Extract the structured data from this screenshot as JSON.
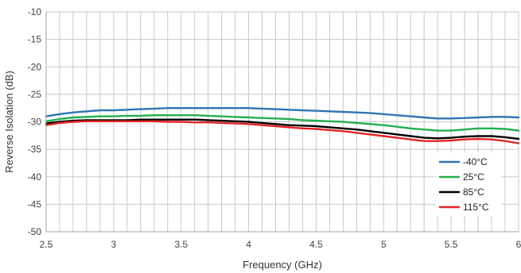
{
  "chart_data": {
    "type": "line",
    "title": "",
    "xlabel": "Frequency (GHz)",
    "ylabel": "Reverse Isolation (dB)",
    "xlim": [
      2.5,
      6
    ],
    "ylim": [
      -50,
      -10
    ],
    "xticks": [
      2.5,
      3,
      3.5,
      4,
      4.5,
      5,
      5.5,
      6
    ],
    "xtick_labels": [
      "2.5",
      "3",
      "3.5",
      "4",
      "4.5",
      "5",
      "5.5",
      "6"
    ],
    "yticks": [
      -10,
      -15,
      -20,
      -25,
      -30,
      -35,
      -40,
      -45,
      -50
    ],
    "ytick_labels": [
      "-10",
      "-15",
      "-20",
      "-25",
      "-30",
      "-35",
      "-40",
      "-45",
      "-50"
    ],
    "grid": {
      "vertical_minor": true,
      "vertical_step": 0.1,
      "horizontal": true
    },
    "legend_position": "bottom-right",
    "series": [
      {
        "name": "-40°C",
        "color": "#2f75b5",
        "points": [
          [
            2.5,
            -29.0
          ],
          [
            2.6,
            -28.6
          ],
          [
            2.7,
            -28.3
          ],
          [
            2.8,
            -28.1
          ],
          [
            2.9,
            -27.9
          ],
          [
            3.0,
            -27.9
          ],
          [
            3.1,
            -27.8
          ],
          [
            3.2,
            -27.7
          ],
          [
            3.3,
            -27.6
          ],
          [
            3.4,
            -27.5
          ],
          [
            3.5,
            -27.5
          ],
          [
            3.6,
            -27.5
          ],
          [
            3.7,
            -27.5
          ],
          [
            3.8,
            -27.5
          ],
          [
            3.9,
            -27.5
          ],
          [
            4.0,
            -27.5
          ],
          [
            4.1,
            -27.6
          ],
          [
            4.2,
            -27.7
          ],
          [
            4.3,
            -27.8
          ],
          [
            4.4,
            -27.9
          ],
          [
            4.5,
            -28.0
          ],
          [
            4.6,
            -28.1
          ],
          [
            4.7,
            -28.2
          ],
          [
            4.8,
            -28.3
          ],
          [
            4.9,
            -28.4
          ],
          [
            5.0,
            -28.6
          ],
          [
            5.1,
            -28.8
          ],
          [
            5.2,
            -29.0
          ],
          [
            5.3,
            -29.2
          ],
          [
            5.4,
            -29.4
          ],
          [
            5.5,
            -29.4
          ],
          [
            5.6,
            -29.3
          ],
          [
            5.7,
            -29.2
          ],
          [
            5.8,
            -29.1
          ],
          [
            5.9,
            -29.1
          ],
          [
            6.0,
            -29.2
          ]
        ]
      },
      {
        "name": "25°C",
        "color": "#22b04e",
        "points": [
          [
            2.5,
            -29.9
          ],
          [
            2.6,
            -29.5
          ],
          [
            2.7,
            -29.2
          ],
          [
            2.8,
            -29.1
          ],
          [
            2.9,
            -29.0
          ],
          [
            3.0,
            -29.0
          ],
          [
            3.1,
            -28.9
          ],
          [
            3.2,
            -28.9
          ],
          [
            3.3,
            -28.8
          ],
          [
            3.4,
            -28.8
          ],
          [
            3.5,
            -28.8
          ],
          [
            3.6,
            -28.8
          ],
          [
            3.7,
            -28.9
          ],
          [
            3.8,
            -29.0
          ],
          [
            3.9,
            -29.1
          ],
          [
            4.0,
            -29.2
          ],
          [
            4.1,
            -29.3
          ],
          [
            4.2,
            -29.4
          ],
          [
            4.3,
            -29.5
          ],
          [
            4.4,
            -29.7
          ],
          [
            4.5,
            -29.8
          ],
          [
            4.6,
            -29.9
          ],
          [
            4.7,
            -30.0
          ],
          [
            4.8,
            -30.2
          ],
          [
            4.9,
            -30.4
          ],
          [
            5.0,
            -30.6
          ],
          [
            5.1,
            -30.9
          ],
          [
            5.2,
            -31.2
          ],
          [
            5.3,
            -31.4
          ],
          [
            5.4,
            -31.6
          ],
          [
            5.5,
            -31.6
          ],
          [
            5.6,
            -31.4
          ],
          [
            5.7,
            -31.2
          ],
          [
            5.8,
            -31.2
          ],
          [
            5.9,
            -31.3
          ],
          [
            6.0,
            -31.6
          ]
        ]
      },
      {
        "name": "85°C",
        "color": "#000000",
        "points": [
          [
            2.5,
            -30.3
          ],
          [
            2.6,
            -30.0
          ],
          [
            2.7,
            -29.8
          ],
          [
            2.8,
            -29.7
          ],
          [
            2.9,
            -29.7
          ],
          [
            3.0,
            -29.7
          ],
          [
            3.1,
            -29.7
          ],
          [
            3.2,
            -29.6
          ],
          [
            3.3,
            -29.6
          ],
          [
            3.4,
            -29.6
          ],
          [
            3.5,
            -29.6
          ],
          [
            3.6,
            -29.6
          ],
          [
            3.7,
            -29.7
          ],
          [
            3.8,
            -29.8
          ],
          [
            3.9,
            -29.9
          ],
          [
            4.0,
            -30.0
          ],
          [
            4.1,
            -30.2
          ],
          [
            4.2,
            -30.4
          ],
          [
            4.3,
            -30.6
          ],
          [
            4.4,
            -30.7
          ],
          [
            4.5,
            -30.8
          ],
          [
            4.6,
            -31.0
          ],
          [
            4.7,
            -31.2
          ],
          [
            4.8,
            -31.4
          ],
          [
            4.9,
            -31.7
          ],
          [
            5.0,
            -32.0
          ],
          [
            5.1,
            -32.3
          ],
          [
            5.2,
            -32.6
          ],
          [
            5.3,
            -32.9
          ],
          [
            5.4,
            -33.0
          ],
          [
            5.5,
            -32.9
          ],
          [
            5.6,
            -32.7
          ],
          [
            5.7,
            -32.6
          ],
          [
            5.8,
            -32.6
          ],
          [
            5.9,
            -32.8
          ],
          [
            6.0,
            -33.1
          ]
        ]
      },
      {
        "name": "115°C",
        "color": "#e52323",
        "points": [
          [
            2.5,
            -30.6
          ],
          [
            2.6,
            -30.2
          ],
          [
            2.7,
            -30.0
          ],
          [
            2.8,
            -29.9
          ],
          [
            2.9,
            -29.9
          ],
          [
            3.0,
            -29.9
          ],
          [
            3.1,
            -29.9
          ],
          [
            3.2,
            -29.9
          ],
          [
            3.3,
            -29.9
          ],
          [
            3.4,
            -30.0
          ],
          [
            3.5,
            -30.0
          ],
          [
            3.6,
            -30.1
          ],
          [
            3.7,
            -30.1
          ],
          [
            3.8,
            -30.2
          ],
          [
            3.9,
            -30.3
          ],
          [
            4.0,
            -30.4
          ],
          [
            4.1,
            -30.6
          ],
          [
            4.2,
            -30.8
          ],
          [
            4.3,
            -31.0
          ],
          [
            4.4,
            -31.2
          ],
          [
            4.5,
            -31.3
          ],
          [
            4.6,
            -31.5
          ],
          [
            4.7,
            -31.7
          ],
          [
            4.8,
            -32.0
          ],
          [
            4.9,
            -32.3
          ],
          [
            5.0,
            -32.6
          ],
          [
            5.1,
            -32.9
          ],
          [
            5.2,
            -33.2
          ],
          [
            5.3,
            -33.5
          ],
          [
            5.4,
            -33.5
          ],
          [
            5.5,
            -33.4
          ],
          [
            5.6,
            -33.2
          ],
          [
            5.7,
            -33.1
          ],
          [
            5.8,
            -33.2
          ],
          [
            5.9,
            -33.5
          ],
          [
            6.0,
            -33.9
          ]
        ]
      }
    ]
  }
}
